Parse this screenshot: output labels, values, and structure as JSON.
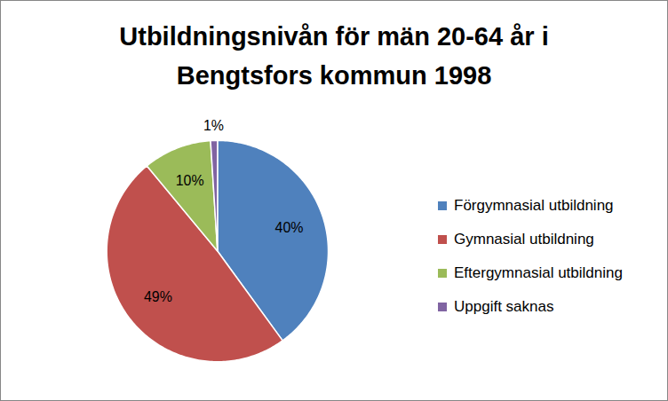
{
  "chart_data": {
    "type": "pie",
    "title": "Utbildningsnivån för män 20-64 år i Bengtsfors kommun 1998",
    "categories": [
      "Förgymnasial utbildning",
      "Gymnasial utbildning",
      "Eftergymnasial utbildning",
      "Uppgift saknas"
    ],
    "values": [
      40,
      49,
      10,
      1
    ],
    "value_labels": [
      "40%",
      "49%",
      "10%",
      "1%"
    ],
    "colors": [
      "#4F81BD",
      "#C0504D",
      "#9BBB59",
      "#8064A2"
    ],
    "data_labels": true,
    "legend": "right"
  }
}
